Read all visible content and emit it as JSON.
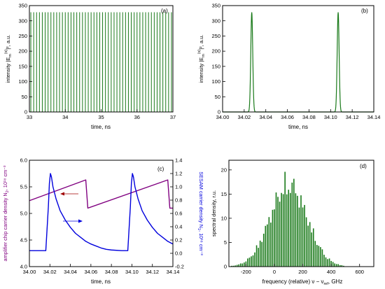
{
  "chart_data": [
    {
      "id": "a",
      "type": "line",
      "panel_label": "(a)",
      "xlabel": "time, ns",
      "ylabel": "intensity |E",
      "ylabel_sub": "m",
      "ylabel_sup": "(s)",
      "ylabel_tail": "|², a.u.",
      "xlim": [
        33,
        37
      ],
      "ylim": [
        0,
        350
      ],
      "x_ticks": [
        "33",
        "34",
        "35",
        "36",
        "37"
      ],
      "y_ticks": [
        "0",
        "50",
        "100",
        "150",
        "200",
        "250",
        "300",
        "350"
      ],
      "series": [
        {
          "color": "#1a7a1a",
          "pulse_period_ns": 0.08,
          "first_pulse_ns": 33.04,
          "peak_intensity": 328
        }
      ]
    },
    {
      "id": "b",
      "type": "line",
      "panel_label": "(b)",
      "xlabel": "time, ns",
      "ylabel": "intensity |E",
      "ylabel_sub": "m",
      "ylabel_sup": "(s)",
      "ylabel_tail": "|², a.u.",
      "xlim": [
        34.0,
        34.14
      ],
      "ylim": [
        0,
        350
      ],
      "x_ticks": [
        "34.00",
        "34.02",
        "34.04",
        "34.06",
        "34.08",
        "34.10",
        "34.12",
        "34.14"
      ],
      "y_ticks": [
        "0",
        "50",
        "100",
        "150",
        "200",
        "250",
        "300",
        "350"
      ],
      "series": [
        {
          "color": "#1a7a1a",
          "peaks_ns": [
            34.027,
            34.107
          ],
          "peak_intensity": 328,
          "pulse_width_ns": 0.0009
        }
      ]
    },
    {
      "id": "c",
      "type": "line",
      "panel_label": "(c)",
      "xlabel": "time, ns",
      "ylabel_left": "amplifier chip carrier density N",
      "ylabel_left_sub": "2",
      "ylabel_left_tail": ", 10¹⁸ cm⁻³",
      "ylabel_right": "SESAM carrier density N",
      "ylabel_right_sub": "1",
      "ylabel_right_tail": ", 10¹⁸ cm⁻³",
      "xlim": [
        34.0,
        34.14
      ],
      "ylim_left": [
        4.0,
        6.0
      ],
      "ylim_right": [
        -0.2,
        1.4
      ],
      "x_ticks": [
        "34.00",
        "34.02",
        "34.04",
        "34.06",
        "34.08",
        "34.10",
        "34.12",
        "34.14"
      ],
      "y_ticks_left": [
        "4.0",
        "4.5",
        "5.0",
        "5.5",
        "6.0"
      ],
      "y_ticks_right": [
        "-0.2",
        "0.0",
        "0.2",
        "0.4",
        "0.6",
        "0.8",
        "1.0",
        "1.2",
        "1.4"
      ],
      "series": [
        {
          "axis": "left",
          "color": "#800080",
          "x": [
            34.0,
            34.055,
            34.057,
            34.135,
            34.137,
            34.14
          ],
          "y": [
            5.24,
            5.63,
            5.1,
            5.63,
            5.1,
            5.1
          ]
        },
        {
          "axis": "right",
          "color": "#0000dd",
          "x": [
            34.0,
            34.01,
            34.016,
            34.0185,
            34.0195,
            34.0205,
            34.0215,
            34.023,
            34.026,
            34.03,
            34.035,
            34.04,
            34.045,
            34.05,
            34.055,
            34.06,
            34.065,
            34.07,
            34.075,
            34.08,
            34.09,
            34.096,
            34.0985,
            34.0995,
            34.1005,
            34.1015,
            34.103,
            34.106,
            34.11,
            34.115,
            34.12,
            34.125,
            34.13,
            34.135,
            34.14
          ],
          "y": [
            0.04,
            0.04,
            0.04,
            0.7,
            1.05,
            1.2,
            1.15,
            1.0,
            0.82,
            0.64,
            0.5,
            0.39,
            0.3,
            0.24,
            0.18,
            0.14,
            0.11,
            0.08,
            0.06,
            0.05,
            0.04,
            0.04,
            0.7,
            1.05,
            1.2,
            1.15,
            1.0,
            0.82,
            0.64,
            0.5,
            0.39,
            0.3,
            0.24,
            0.18,
            0.14
          ]
        }
      ]
    },
    {
      "id": "d",
      "type": "bar",
      "panel_label": "(d)",
      "xlabel": "frequency (relative) ν − ν",
      "xlabel_sub": "ref",
      "xlabel_tail": ", GHz",
      "ylabel": "spectral density, r.u.",
      "xlim": [
        -320,
        700
      ],
      "ylim": [
        0,
        22
      ],
      "x_ticks": [
        "-200",
        "0",
        "200",
        "400",
        "600"
      ],
      "y_ticks": [
        "0",
        "5",
        "10",
        "15",
        "20"
      ],
      "series": [
        {
          "color": "#1a7a1a",
          "line_spacing_ghz": 12.5,
          "center_ghz": 100,
          "envelope_sigma_ghz": 130,
          "peak_value": 20
        }
      ]
    }
  ]
}
